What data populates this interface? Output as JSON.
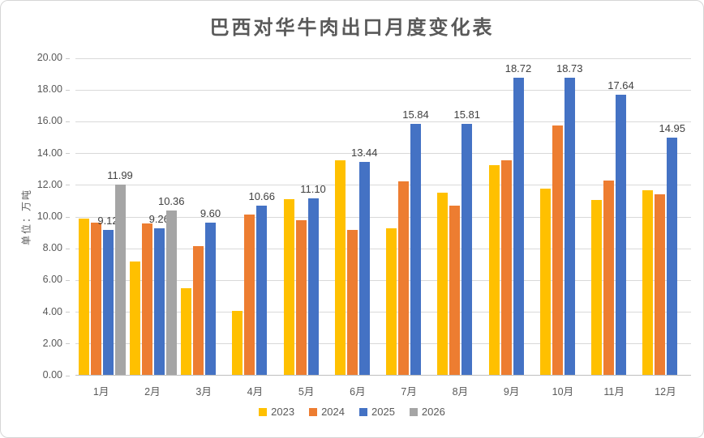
{
  "chart_data": {
    "type": "bar",
    "title": "巴西对华牛肉出口月度变化表",
    "ylabel": "单位：万吨",
    "xlabel": "",
    "ylim": [
      0,
      20
    ],
    "ytick_step": 2,
    "ytick_labels": [
      "0.00",
      "2.00",
      "4.00",
      "6.00",
      "8.00",
      "10.00",
      "12.00",
      "14.00",
      "16.00",
      "18.00",
      "20.00"
    ],
    "grid": true,
    "legend_position": "bottom",
    "categories": [
      "1月",
      "2月",
      "3月",
      "4月",
      "5月",
      "6月",
      "7月",
      "8月",
      "9月",
      "10月",
      "11月",
      "12月"
    ],
    "series": [
      {
        "name": "2023",
        "color": "#FFC000",
        "show_labels": false,
        "values": [
          9.85,
          7.14,
          5.45,
          4.04,
          11.07,
          13.52,
          9.21,
          11.46,
          13.2,
          11.73,
          11.04,
          11.64
        ]
      },
      {
        "name": "2024",
        "color": "#ED7D31",
        "show_labels": false,
        "values": [
          9.6,
          9.56,
          8.1,
          10.1,
          9.77,
          9.13,
          12.22,
          10.67,
          13.51,
          15.7,
          12.27,
          11.36
        ]
      },
      {
        "name": "2025",
        "color": "#4472C4",
        "show_labels": true,
        "values": [
          9.12,
          9.26,
          9.6,
          10.66,
          11.1,
          13.44,
          15.84,
          15.81,
          18.72,
          18.73,
          17.64,
          14.95
        ]
      },
      {
        "name": "2026",
        "color": "#A5A5A5",
        "show_labels": true,
        "values": [
          11.99,
          10.36,
          null,
          null,
          null,
          null,
          null,
          null,
          null,
          null,
          null,
          null
        ]
      }
    ]
  },
  "colors": {
    "grid": "#D9D9D9",
    "axis_line": "#BFBFBF",
    "axis_text": "#595959",
    "title_text": "#595959",
    "data_label_text": "#404040",
    "panel_border": "#D6D6D6",
    "background": "#FFFFFF"
  }
}
